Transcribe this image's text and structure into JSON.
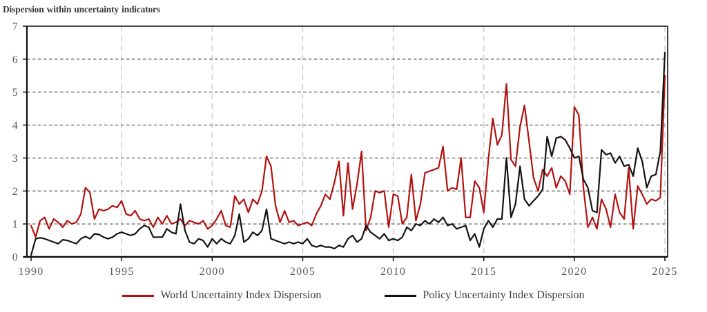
{
  "title": "Dispersion within uncertainty indicators",
  "colors": {
    "world_series": "#B2120F",
    "policy_series": "#121212",
    "grid_horizontal": "#2e2e2e",
    "grid_vertical": "#c9c9c9",
    "axis": "#111111",
    "tick_label": "#595959",
    "title_text": "#3d3d3d"
  },
  "chart_data": {
    "type": "line",
    "title": "Dispersion within uncertainty indicators",
    "x_unit": "quarter",
    "x_start": 1990,
    "x_end": 2025,
    "ylim": [
      0,
      7
    ],
    "yticks": [
      0,
      1,
      2,
      3,
      4,
      5,
      6,
      7
    ],
    "xticks": [
      1990,
      1995,
      2000,
      2005,
      2010,
      2015,
      2020,
      2025
    ],
    "grid": "horizontal dashed dark lines at integers 1-6; vertical dashed light lines at 5-year marks",
    "legend_position": "bottom",
    "series": [
      {
        "name": "World Uncertainty Index Dispersion",
        "color": "#B2120F",
        "values": [
          0.95,
          0.6,
          1.1,
          1.2,
          0.85,
          1.15,
          1.05,
          0.9,
          1.1,
          1.0,
          1.05,
          1.3,
          2.1,
          1.95,
          1.15,
          1.45,
          1.4,
          1.45,
          1.55,
          1.5,
          1.7,
          1.3,
          1.25,
          1.4,
          1.15,
          1.1,
          1.15,
          0.9,
          1.2,
          1.0,
          1.25,
          1.0,
          1.05,
          1.15,
          0.95,
          1.1,
          1.05,
          1.0,
          1.1,
          0.85,
          0.95,
          1.15,
          1.4,
          0.95,
          0.9,
          1.85,
          1.6,
          1.75,
          1.35,
          1.75,
          1.6,
          2.0,
          3.05,
          2.75,
          1.55,
          1.05,
          1.4,
          1.05,
          1.1,
          0.95,
          1.0,
          1.05,
          0.95,
          1.3,
          1.55,
          1.9,
          1.75,
          2.25,
          2.9,
          1.25,
          2.85,
          1.45,
          2.2,
          3.2,
          0.8,
          1.2,
          2.0,
          1.95,
          2.0,
          0.9,
          1.9,
          1.85,
          1.0,
          1.2,
          2.5,
          1.1,
          1.6,
          2.55,
          2.6,
          2.65,
          2.7,
          3.35,
          2.0,
          2.1,
          2.05,
          3.0,
          1.2,
          1.2,
          2.3,
          2.1,
          1.35,
          2.95,
          4.2,
          3.4,
          3.7,
          5.25,
          2.95,
          2.75,
          3.95,
          4.6,
          3.5,
          2.4,
          2.0,
          2.65,
          2.45,
          2.7,
          2.1,
          2.45,
          2.3,
          1.9,
          4.55,
          4.3,
          2.1,
          0.9,
          1.2,
          0.85,
          1.75,
          1.45,
          0.9,
          1.9,
          1.35,
          1.15,
          2.7,
          0.85,
          2.15,
          1.9,
          1.6,
          1.75,
          1.7,
          1.8,
          5.5
        ]
      },
      {
        "name": "Policy Uncertainty Index Dispersion",
        "color": "#121212",
        "values": [
          0.05,
          0.55,
          0.58,
          0.55,
          0.5,
          0.45,
          0.4,
          0.52,
          0.5,
          0.45,
          0.4,
          0.55,
          0.62,
          0.55,
          0.7,
          0.68,
          0.6,
          0.55,
          0.6,
          0.7,
          0.75,
          0.7,
          0.65,
          0.7,
          0.85,
          0.95,
          0.9,
          0.6,
          0.6,
          0.6,
          0.85,
          0.75,
          0.7,
          1.6,
          0.8,
          0.45,
          0.4,
          0.55,
          0.5,
          0.3,
          0.55,
          0.4,
          0.55,
          0.45,
          0.4,
          0.65,
          1.3,
          0.45,
          0.55,
          0.75,
          0.65,
          0.8,
          1.45,
          0.55,
          0.5,
          0.45,
          0.4,
          0.45,
          0.4,
          0.45,
          0.4,
          0.55,
          0.35,
          0.3,
          0.35,
          0.3,
          0.3,
          0.25,
          0.35,
          0.3,
          0.55,
          0.65,
          0.45,
          0.55,
          0.95,
          0.75,
          0.65,
          0.55,
          0.7,
          0.5,
          0.55,
          0.5,
          0.6,
          0.9,
          0.8,
          1.0,
          0.95,
          1.1,
          1.0,
          1.15,
          1.05,
          1.2,
          0.95,
          1.0,
          0.85,
          0.9,
          0.95,
          0.5,
          0.7,
          0.3,
          0.85,
          1.1,
          0.9,
          1.15,
          1.15,
          3.0,
          1.2,
          1.6,
          2.75,
          1.75,
          1.55,
          1.7,
          1.85,
          2.05,
          3.65,
          3.05,
          3.6,
          3.65,
          3.55,
          3.3,
          3.0,
          3.05,
          2.35,
          2.1,
          1.4,
          1.35,
          3.25,
          3.1,
          3.15,
          2.85,
          3.05,
          2.75,
          2.8,
          2.45,
          3.3,
          2.9,
          2.1,
          2.45,
          2.5,
          3.2,
          6.2
        ]
      }
    ]
  }
}
